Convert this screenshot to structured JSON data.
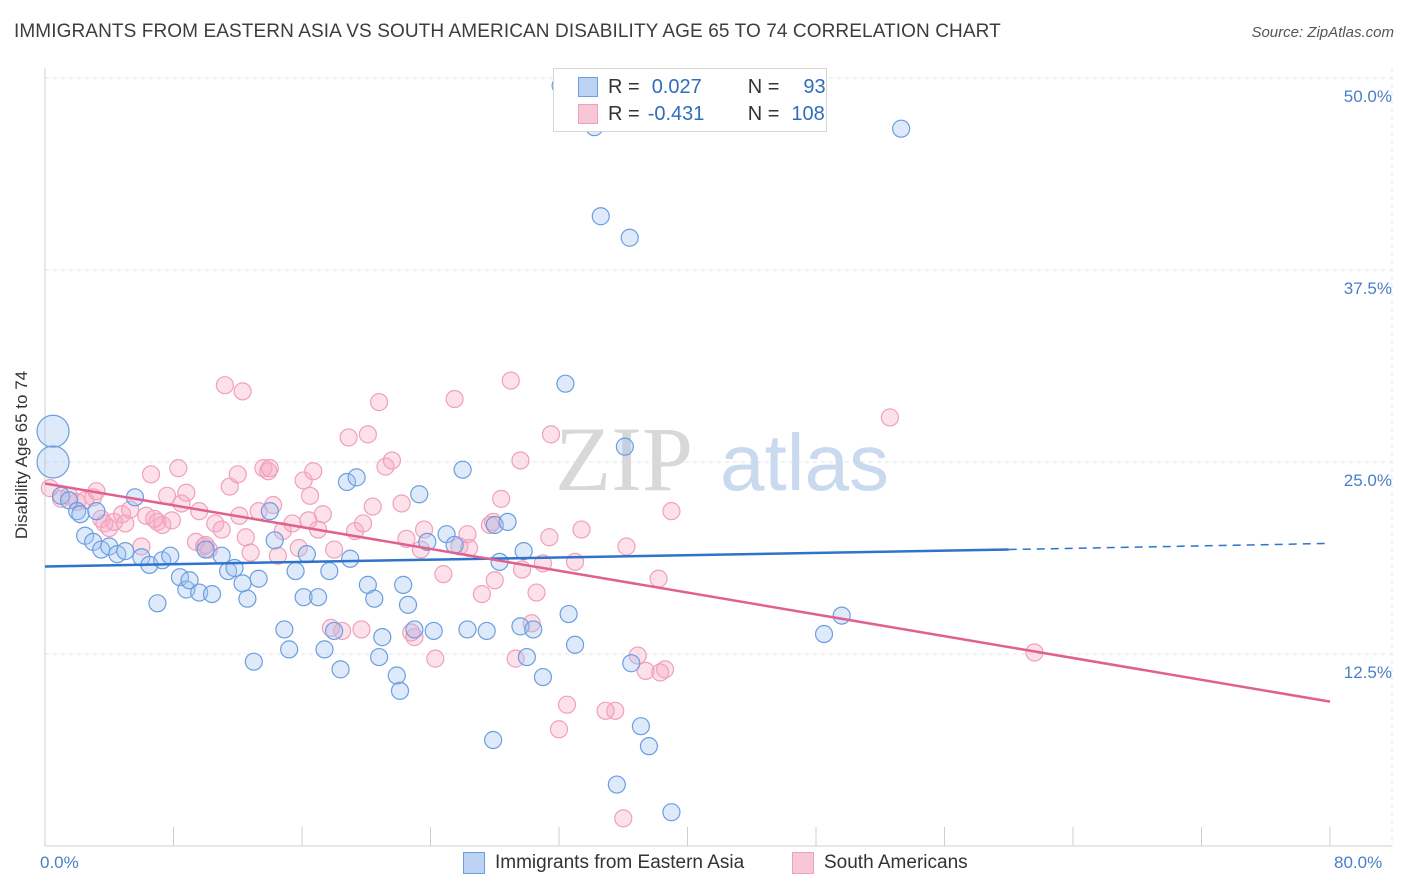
{
  "title": "IMMIGRANTS FROM EASTERN ASIA VS SOUTH AMERICAN DISABILITY AGE 65 TO 74 CORRELATION CHART",
  "source": "Source: ZipAtlas.com",
  "watermark": {
    "zip": "ZIP",
    "atlas": "atlas"
  },
  "legend": {
    "r_label": "R =",
    "n_label": "N =",
    "series": [
      {
        "r": "0.027",
        "n": "93"
      },
      {
        "r": "-0.431",
        "n": "108"
      }
    ]
  },
  "chart_data": {
    "type": "scatter",
    "title": "IMMIGRANTS FROM EASTERN ASIA VS SOUTH AMERICAN DISABILITY AGE 65 TO 74 CORRELATION CHART",
    "xlabel": "",
    "ylabel": "Disability Age 65 to 74",
    "xlim": [
      0,
      80
    ],
    "ylim": [
      0,
      50
    ],
    "x_tick_labels": [
      "0.0%",
      "80.0%"
    ],
    "y_tick_labels": [
      "12.5%",
      "25.0%",
      "37.5%",
      "50.0%"
    ],
    "y_ticks": [
      12.5,
      25,
      37.5,
      50
    ],
    "grid": true,
    "legend_position": "top-center",
    "colors": {
      "blue": "#6b9ee0",
      "pink": "#f0a0bc",
      "blue_line": "#2e73cc",
      "pink_line": "#e0608f"
    },
    "series": [
      {
        "name": "Immigrants from Eastern Asia",
        "color": "blue",
        "trend": {
          "x": [
            0,
            60
          ],
          "y": [
            18.2,
            19.3
          ],
          "dashed_to": [
            80,
            19.7
          ]
        },
        "points": [
          [
            0.5,
            27.0
          ],
          [
            0.5,
            25.0
          ],
          [
            1,
            22.8
          ],
          [
            1.5,
            22.5
          ],
          [
            2,
            21.8
          ],
          [
            2.2,
            21.6
          ],
          [
            2.5,
            20.2
          ],
          [
            3,
            19.8
          ],
          [
            3.2,
            21.8
          ],
          [
            3.5,
            19.3
          ],
          [
            4,
            19.5
          ],
          [
            4.5,
            19.0
          ],
          [
            5,
            19.2
          ],
          [
            5.6,
            22.7
          ],
          [
            6,
            18.8
          ],
          [
            6.5,
            18.3
          ],
          [
            7,
            15.8
          ],
          [
            7.3,
            18.6
          ],
          [
            7.8,
            18.9
          ],
          [
            8.4,
            17.5
          ],
          [
            8.8,
            16.7
          ],
          [
            9,
            17.3
          ],
          [
            9.6,
            16.5
          ],
          [
            10,
            19.3
          ],
          [
            10.4,
            16.4
          ],
          [
            11,
            18.9
          ],
          [
            11.4,
            17.9
          ],
          [
            11.8,
            18.1
          ],
          [
            12.3,
            17.1
          ],
          [
            12.6,
            16.1
          ],
          [
            13,
            12.0
          ],
          [
            13.3,
            17.4
          ],
          [
            14,
            21.8
          ],
          [
            14.3,
            19.9
          ],
          [
            14.9,
            14.1
          ],
          [
            15.2,
            12.8
          ],
          [
            15.6,
            17.9
          ],
          [
            16.1,
            16.2
          ],
          [
            16.3,
            19.0
          ],
          [
            17,
            16.2
          ],
          [
            17.4,
            12.8
          ],
          [
            17.7,
            17.9
          ],
          [
            18,
            14.0
          ],
          [
            18.4,
            11.5
          ],
          [
            18.8,
            23.7
          ],
          [
            19,
            18.7
          ],
          [
            19.4,
            24.0
          ],
          [
            20.1,
            17.0
          ],
          [
            20.5,
            16.1
          ],
          [
            20.8,
            12.3
          ],
          [
            21,
            13.6
          ],
          [
            21.9,
            11.1
          ],
          [
            22.1,
            10.1
          ],
          [
            22.3,
            17.0
          ],
          [
            22.6,
            15.7
          ],
          [
            23,
            14.1
          ],
          [
            23.3,
            22.9
          ],
          [
            23.8,
            19.8
          ],
          [
            24.2,
            14.0
          ],
          [
            25,
            20.3
          ],
          [
            25.5,
            19.6
          ],
          [
            26,
            24.5
          ],
          [
            26.3,
            14.1
          ],
          [
            27.5,
            14.0
          ],
          [
            27.9,
            6.9
          ],
          [
            28,
            20.9
          ],
          [
            28.3,
            18.5
          ],
          [
            28.8,
            21.1
          ],
          [
            29.6,
            14.3
          ],
          [
            29.8,
            19.2
          ],
          [
            30,
            12.3
          ],
          [
            30.4,
            14.1
          ],
          [
            31,
            11.0
          ],
          [
            32.1,
            49.5
          ],
          [
            32.4,
            30.1
          ],
          [
            32.6,
            15.1
          ],
          [
            33,
            13.1
          ],
          [
            34.2,
            46.8
          ],
          [
            34.6,
            41.0
          ],
          [
            35.6,
            4.0
          ],
          [
            36.1,
            26.0
          ],
          [
            36.4,
            39.6
          ],
          [
            36.5,
            11.9
          ],
          [
            37.1,
            7.8
          ],
          [
            37.6,
            6.5
          ],
          [
            39,
            2.2
          ],
          [
            48.5,
            13.8
          ],
          [
            49.6,
            15.0
          ],
          [
            53.3,
            46.7
          ]
        ]
      },
      {
        "name": "South Americans",
        "color": "pink",
        "trend": {
          "x": [
            0,
            80
          ],
          "y": [
            23.6,
            9.4
          ]
        },
        "points": [
          [
            0.3,
            23.3
          ],
          [
            1,
            22.6
          ],
          [
            1.5,
            22.8
          ],
          [
            2,
            22.4
          ],
          [
            2.5,
            22.5
          ],
          [
            3,
            22.7
          ],
          [
            3.2,
            23.1
          ],
          [
            3.5,
            21.3
          ],
          [
            3.7,
            21.0
          ],
          [
            4,
            20.7
          ],
          [
            4.3,
            21.1
          ],
          [
            4.8,
            21.6
          ],
          [
            5,
            21.0
          ],
          [
            5.3,
            21.9
          ],
          [
            6,
            19.5
          ],
          [
            6.3,
            21.5
          ],
          [
            6.6,
            24.2
          ],
          [
            7,
            21.1
          ],
          [
            7.3,
            20.9
          ],
          [
            7.6,
            22.8
          ],
          [
            7.9,
            21.2
          ],
          [
            8.3,
            24.6
          ],
          [
            8.5,
            22.3
          ],
          [
            8.8,
            23.0
          ],
          [
            9.4,
            19.8
          ],
          [
            9.6,
            21.8
          ],
          [
            9.9,
            19.5
          ],
          [
            10.2,
            19.3
          ],
          [
            10.6,
            21.0
          ],
          [
            11,
            20.6
          ],
          [
            11.2,
            30.0
          ],
          [
            11.5,
            23.4
          ],
          [
            12,
            24.2
          ],
          [
            12.3,
            29.6
          ],
          [
            12.5,
            20.1
          ],
          [
            12.8,
            19.1
          ],
          [
            13.3,
            21.8
          ],
          [
            13.6,
            24.6
          ],
          [
            13.9,
            24.4
          ],
          [
            14.2,
            22.2
          ],
          [
            14.5,
            18.9
          ],
          [
            14.8,
            20.5
          ],
          [
            15.4,
            21.0
          ],
          [
            15.8,
            19.4
          ],
          [
            16.1,
            23.8
          ],
          [
            16.4,
            21.2
          ],
          [
            16.7,
            24.4
          ],
          [
            17,
            20.6
          ],
          [
            17.3,
            21.6
          ],
          [
            17.8,
            14.2
          ],
          [
            18,
            19.3
          ],
          [
            18.5,
            14.0
          ],
          [
            18.9,
            26.6
          ],
          [
            19.3,
            20.5
          ],
          [
            19.7,
            14.1
          ],
          [
            20.1,
            26.8
          ],
          [
            20.4,
            22.1
          ],
          [
            20.8,
            28.9
          ],
          [
            21.2,
            24.7
          ],
          [
            21.6,
            25.1
          ],
          [
            22.2,
            22.3
          ],
          [
            22.5,
            20.0
          ],
          [
            23,
            13.6
          ],
          [
            23.4,
            19.3
          ],
          [
            23.6,
            20.6
          ],
          [
            24.3,
            12.2
          ],
          [
            24.8,
            17.7
          ],
          [
            25.5,
            29.1
          ],
          [
            25.8,
            19.5
          ],
          [
            26.4,
            19.4
          ],
          [
            27.2,
            16.4
          ],
          [
            27.7,
            20.9
          ],
          [
            28,
            17.3
          ],
          [
            28.4,
            22.6
          ],
          [
            29,
            30.3
          ],
          [
            29.3,
            12.2
          ],
          [
            29.6,
            25.1
          ],
          [
            30.3,
            14.5
          ],
          [
            30.6,
            16.5
          ],
          [
            31,
            18.4
          ],
          [
            31.5,
            26.8
          ],
          [
            32,
            7.6
          ],
          [
            32.5,
            9.2
          ],
          [
            33,
            18.5
          ],
          [
            36.2,
            19.5
          ],
          [
            36.9,
            12.4
          ],
          [
            37.4,
            11.4
          ],
          [
            38.2,
            17.4
          ],
          [
            39,
            21.8
          ],
          [
            52.6,
            27.9
          ],
          [
            61.6,
            12.6
          ],
          [
            35.5,
            8.8
          ],
          [
            34.9,
            8.8
          ],
          [
            36.0,
            1.8
          ],
          [
            38.6,
            11.5
          ],
          [
            14.0,
            24.6
          ],
          [
            19.8,
            21.0
          ],
          [
            27.9,
            21.1
          ],
          [
            12.1,
            21.5
          ],
          [
            16.5,
            22.8
          ],
          [
            26.3,
            20.3
          ],
          [
            33.4,
            20.6
          ],
          [
            6.8,
            21.3
          ],
          [
            10.0,
            19.6
          ],
          [
            38.3,
            11.3
          ],
          [
            22.8,
            13.9
          ],
          [
            29.7,
            18.0
          ],
          [
            31.4,
            20.1
          ]
        ]
      }
    ]
  },
  "bottom_legend": [
    "Immigrants from Eastern Asia",
    "South Americans"
  ]
}
